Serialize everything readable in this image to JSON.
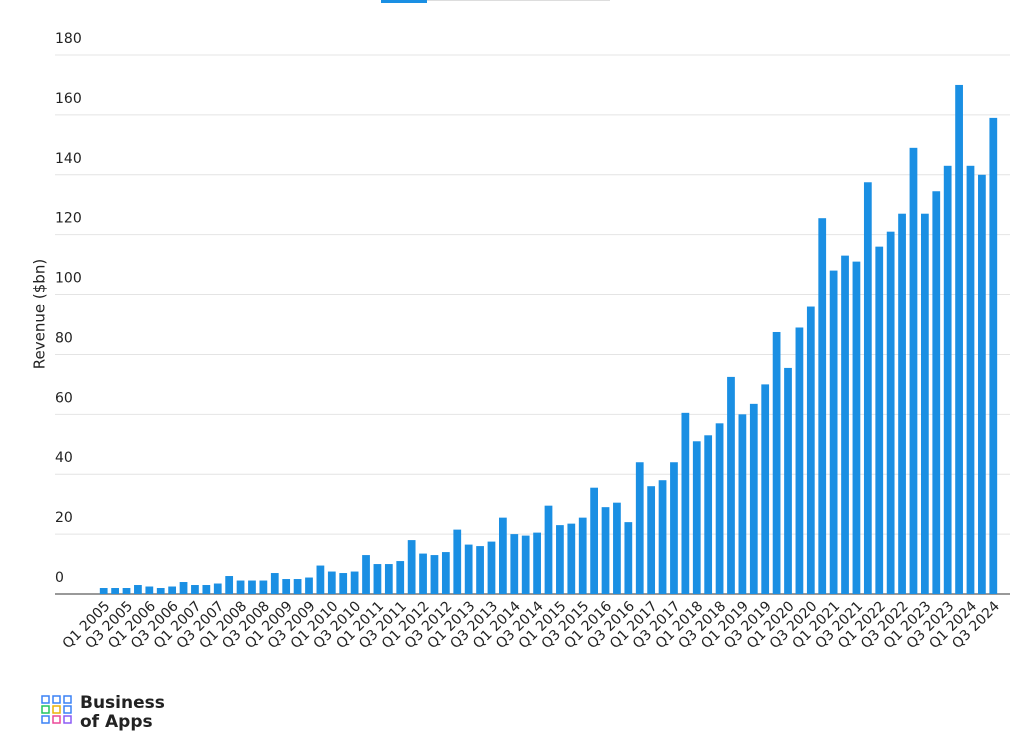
{
  "chart_data": {
    "type": "bar",
    "y_label": "Revenue ($bn)",
    "categories": [
      "Q1 2005",
      null,
      "Q3 2005",
      null,
      "Q1 2006",
      null,
      "Q3 2006",
      null,
      "Q1 2007",
      null,
      "Q3 2007",
      null,
      "Q1 2008",
      null,
      "Q3 2008",
      null,
      "Q1 2009",
      null,
      "Q3 2009",
      null,
      "Q1 2010",
      null,
      "Q3 2010",
      null,
      "Q1 2011",
      null,
      "Q3 2011",
      null,
      "Q1 2012",
      null,
      "Q3 2012",
      null,
      "Q1 2013",
      null,
      "Q3 2013",
      null,
      "Q1 2014",
      null,
      "Q3 2014",
      null,
      "Q1 2015",
      null,
      "Q3 2015",
      null,
      "Q1 2016",
      null,
      "Q3 2016",
      null,
      "Q1 2017",
      null,
      "Q3 2017",
      null,
      "Q1 2018",
      null,
      "Q3 2018",
      null,
      "Q1 2019",
      null,
      "Q3 2019",
      null,
      "Q1 2020",
      null,
      "Q3 2020",
      null,
      "Q1 2021",
      null,
      "Q3 2021",
      null,
      "Q1 2022",
      null,
      "Q3 2022",
      null,
      "Q1 2023",
      null,
      "Q3 2023",
      null,
      "Q1 2024",
      null,
      "Q3 2024"
    ],
    "values": [
      2,
      2,
      2,
      3,
      2.5,
      2,
      2.5,
      4,
      3,
      3,
      3.5,
      6,
      4.5,
      4.5,
      4.5,
      7,
      5,
      5,
      5.5,
      9.5,
      7.5,
      7,
      7.5,
      13,
      10,
      10,
      11,
      18,
      13.5,
      13,
      14,
      21.5,
      16.5,
      16,
      17.5,
      25.5,
      20,
      19.5,
      20.5,
      29.5,
      23,
      23.5,
      25.5,
      35.5,
      29,
      30.5,
      24,
      44,
      36,
      38,
      44,
      60.5,
      51,
      53,
      57,
      72.5,
      60,
      63.5,
      70,
      87.5,
      75.5,
      89,
      96,
      125.5,
      108,
      113,
      111,
      137.5,
      116,
      121,
      127,
      149,
      127,
      134.5,
      143,
      170,
      143,
      140,
      159
    ],
    "color": "#1a8fe3",
    "ylim": [
      0,
      180
    ],
    "yticks": [
      0,
      20,
      40,
      60,
      80,
      100,
      120,
      140,
      160,
      180
    ],
    "grid": true
  },
  "logo": {
    "line1": "Business",
    "line2": "of Apps"
  }
}
